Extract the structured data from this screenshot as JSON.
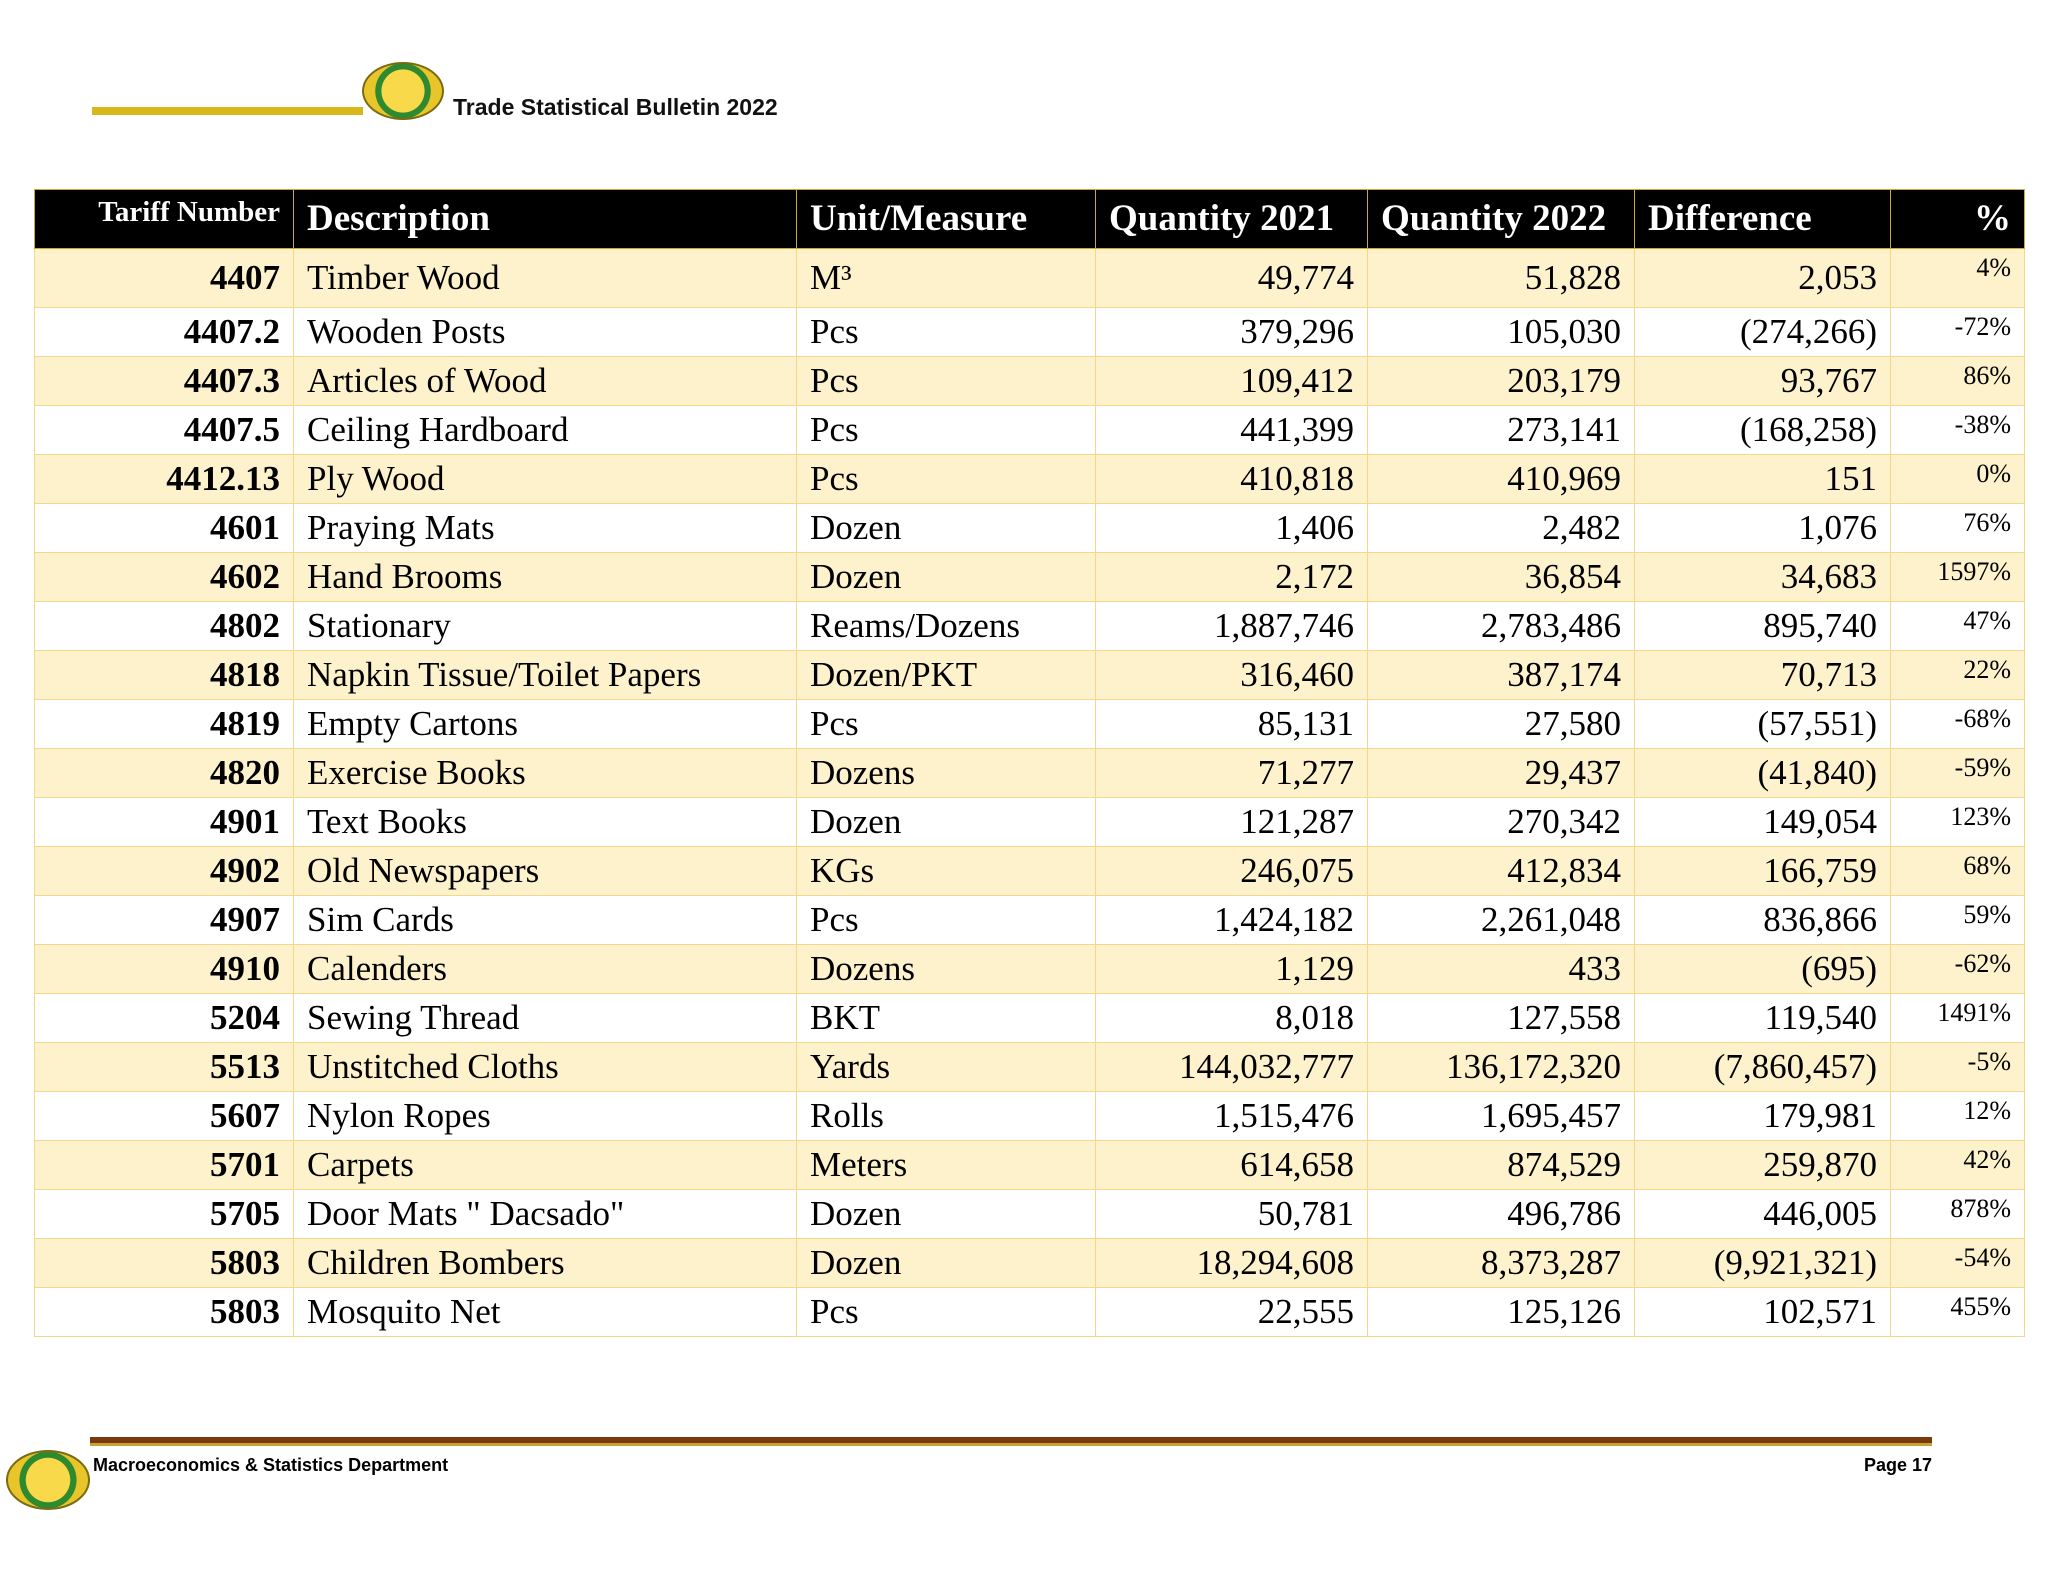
{
  "header": {
    "title": "Trade Statistical Bulletin 2022"
  },
  "table": {
    "columns": [
      "Tariff Number",
      "Description",
      "Unit/Measure",
      "Quantity 2021",
      "Quantity 2022",
      "Difference",
      "%"
    ],
    "rows": [
      [
        "4407",
        "Timber Wood",
        "M³",
        "49,774",
        "51,828",
        "2,053",
        "4%"
      ],
      [
        "4407.2",
        "Wooden Posts",
        "Pcs",
        "379,296",
        "105,030",
        "(274,266)",
        "-72%"
      ],
      [
        "4407.3",
        "Articles of Wood",
        "Pcs",
        "109,412",
        "203,179",
        "93,767",
        "86%"
      ],
      [
        "4407.5",
        "Ceiling Hardboard",
        "Pcs",
        "441,399",
        "273,141",
        "(168,258)",
        "-38%"
      ],
      [
        "4412.13",
        "Ply Wood",
        "Pcs",
        "410,818",
        "410,969",
        "151",
        "0%"
      ],
      [
        "4601",
        "Praying Mats",
        "Dozen",
        "1,406",
        "2,482",
        "1,076",
        "76%"
      ],
      [
        "4602",
        "Hand Brooms",
        "Dozen",
        "2,172",
        "36,854",
        "34,683",
        "1597%"
      ],
      [
        "4802",
        "Stationary",
        "Reams/Dozens",
        "1,887,746",
        "2,783,486",
        "895,740",
        "47%"
      ],
      [
        "4818",
        "Napkin Tissue/Toilet Papers",
        "Dozen/PKT",
        "316,460",
        "387,174",
        "70,713",
        "22%"
      ],
      [
        "4819",
        "Empty Cartons",
        "Pcs",
        "85,131",
        "27,580",
        "(57,551)",
        "-68%"
      ],
      [
        "4820",
        "Exercise Books",
        "Dozens",
        "71,277",
        "29,437",
        "(41,840)",
        "-59%"
      ],
      [
        "4901",
        "Text Books",
        "Dozen",
        "121,287",
        "270,342",
        "149,054",
        "123%"
      ],
      [
        "4902",
        "Old Newspapers",
        "KGs",
        "246,075",
        "412,834",
        "166,759",
        "68%"
      ],
      [
        "4907",
        "Sim Cards",
        "Pcs",
        "1,424,182",
        "2,261,048",
        "836,866",
        "59%"
      ],
      [
        "4910",
        "Calenders",
        "Dozens",
        "1,129",
        "433",
        "(695)",
        "-62%"
      ],
      [
        "5204",
        "Sewing Thread",
        "BKT",
        "8,018",
        "127,558",
        "119,540",
        "1491%"
      ],
      [
        "5513",
        "Unstitched Cloths",
        "Yards",
        "144,032,777",
        "136,172,320",
        "(7,860,457)",
        "-5%"
      ],
      [
        "5607",
        "Nylon Ropes",
        "Rolls",
        "1,515,476",
        "1,695,457",
        "179,981",
        "12%"
      ],
      [
        "5701",
        "Carpets",
        "Meters",
        "614,658",
        "874,529",
        "259,870",
        "42%"
      ],
      [
        "5705",
        "Door Mats \" Dacsado\"",
        "Dozen",
        "50,781",
        "496,786",
        "446,005",
        "878%"
      ],
      [
        "5803",
        "Children Bombers",
        "Dozen",
        "18,294,608",
        "8,373,287",
        "(9,921,321)",
        "-54%"
      ],
      [
        "5803",
        "Mosquito Net",
        "Pcs",
        "22,555",
        "125,126",
        "102,571",
        "455%"
      ]
    ]
  },
  "footer": {
    "department": "Macroeconomics & Statistics Department",
    "page": "Page 17"
  }
}
